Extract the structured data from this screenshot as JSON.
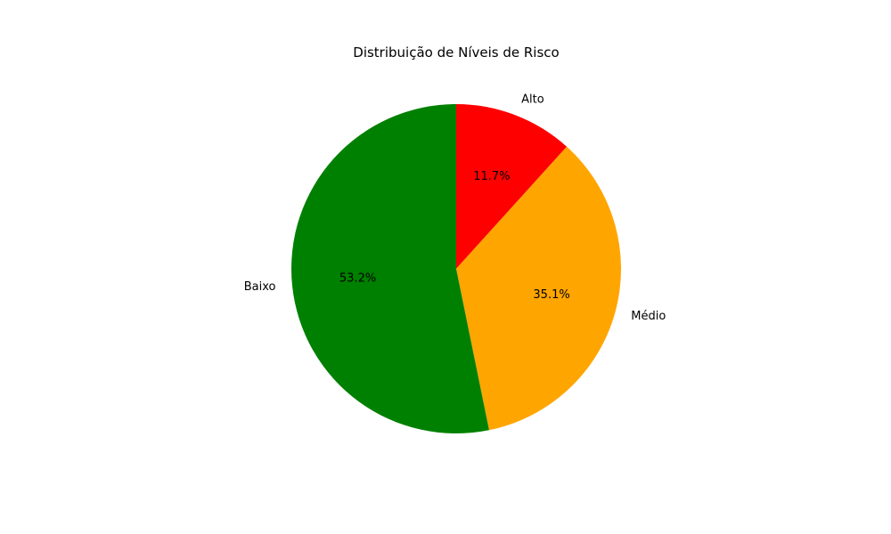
{
  "chart_data": {
    "type": "pie",
    "title": "Distribuição de Níveis de Risco",
    "slices": [
      {
        "label": "Alto",
        "value": 11.7,
        "pct_label": "11.7%",
        "color": "#ff0000"
      },
      {
        "label": "Médio",
        "value": 35.1,
        "pct_label": "35.1%",
        "color": "#ffa500"
      },
      {
        "label": "Baixo",
        "value": 53.2,
        "pct_label": "53.2%",
        "color": "#008000"
      }
    ],
    "start_angle_deg": 90,
    "direction": "clockwise",
    "legend": "none"
  }
}
